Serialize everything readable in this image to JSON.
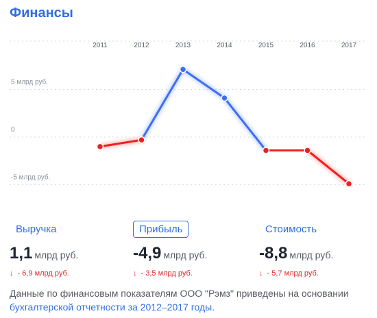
{
  "header": {
    "title": "Финансы"
  },
  "chart_data": {
    "type": "line",
    "title": "",
    "x": [
      "2011",
      "2012",
      "2013",
      "2014",
      "2015",
      "2016",
      "2017"
    ],
    "y_ticks": [
      {
        "value": 5,
        "label": "5 млрд руб."
      },
      {
        "value": 0,
        "label": "0"
      },
      {
        "value": -5,
        "label": "-5 млрд руб."
      }
    ],
    "ylim": [
      -6.4,
      9.2
    ],
    "series": [
      {
        "values": [
          -1.0,
          -0.3,
          7.1,
          4.1,
          -1.4,
          -1.4,
          -4.9
        ]
      }
    ],
    "colors": {
      "positive": "#3d6ef2",
      "negative": "#f01f1f"
    },
    "grid": true
  },
  "metrics": [
    {
      "label": "Выручка",
      "value": "1,1",
      "unit": "млрд руб.",
      "change": "- 6,9 млрд руб.",
      "active": false
    },
    {
      "label": "Прибыль",
      "value": "-4,9",
      "unit": "млрд руб.",
      "change": "- 3,5 млрд руб.",
      "active": true
    },
    {
      "label": "Стоимость",
      "value": "-8,8",
      "unit": "млрд руб.",
      "change": "- 5,7 млрд руб.",
      "active": false
    }
  ],
  "change_arrow": "↓",
  "note": {
    "text": "Данные по финансовым показателям ООО \"Рэмз\" приведены на основании",
    "link": "бухгалтерской отчетности за 2012–2017 годы."
  }
}
